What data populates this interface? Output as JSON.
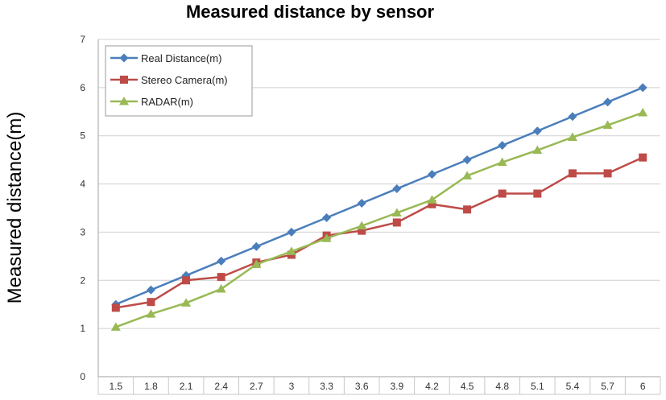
{
  "chart_data": {
    "type": "line",
    "title": "Measured distance by sensor",
    "xlabel": "",
    "ylabel": "Measured distance(m)",
    "categories": [
      "1.5",
      "1.8",
      "2.1",
      "2.4",
      "2.7",
      "3",
      "3.3",
      "3.6",
      "3.9",
      "4.2",
      "4.5",
      "4.8",
      "5.1",
      "5.4",
      "5.7",
      "6"
    ],
    "ylim": [
      0,
      7
    ],
    "yticks": [
      0,
      1,
      2,
      3,
      4,
      5,
      6,
      7
    ],
    "grid": true,
    "legend_position": "top-left",
    "series": [
      {
        "name": "Real Distance(m)",
        "color": "#4a7ebb",
        "marker": "diamond",
        "values": [
          1.5,
          1.8,
          2.1,
          2.4,
          2.7,
          3.0,
          3.3,
          3.6,
          3.9,
          4.2,
          4.5,
          4.8,
          5.1,
          5.4,
          5.7,
          6.0
        ]
      },
      {
        "name": "Stereo Camera(m)",
        "color": "#be4b48",
        "marker": "square",
        "values": [
          1.43,
          1.55,
          2.0,
          2.07,
          2.37,
          2.53,
          2.93,
          3.03,
          3.2,
          3.58,
          3.47,
          3.8,
          3.8,
          4.22,
          4.22,
          4.55
        ]
      },
      {
        "name": "RADAR(m)",
        "color": "#98b954",
        "marker": "triangle",
        "values": [
          1.03,
          1.3,
          1.53,
          1.82,
          2.33,
          2.6,
          2.87,
          3.13,
          3.4,
          3.67,
          4.17,
          4.45,
          4.7,
          4.97,
          5.22,
          5.48
        ]
      }
    ]
  }
}
